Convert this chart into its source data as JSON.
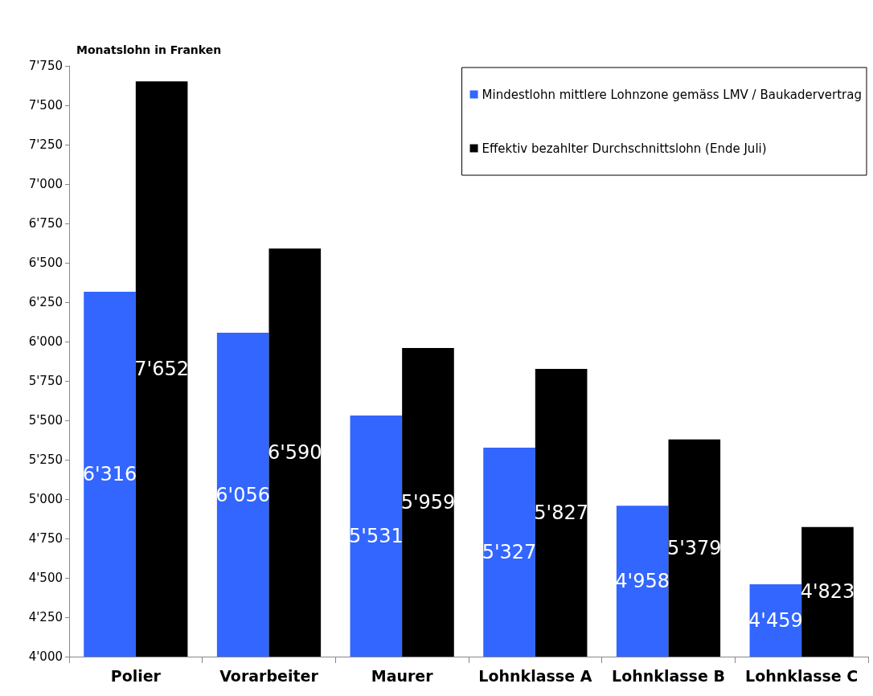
{
  "chart_data": {
    "type": "bar",
    "ylabel": "Monatslohn in Franken",
    "categories": [
      "Polier",
      "Vorarbeiter",
      "Maurer",
      "Lohnklasse A",
      "Lohnklasse B",
      "Lohnklasse C"
    ],
    "series": [
      {
        "name": "Mindestlohn mittlere Lohnzone gemäss LMV / Baukadervertrag",
        "color": "#3366ff",
        "values": [
          6316,
          6056,
          5531,
          5327,
          4958,
          4459
        ],
        "value_labels": [
          "6'316",
          "6'056",
          "5'531",
          "5'327",
          "4'958",
          "4'459"
        ]
      },
      {
        "name": "Effektiv bezahlter Durchschnittslohn (Ende Juli)",
        "color": "#000000",
        "values": [
          7652,
          6590,
          5959,
          5827,
          5379,
          4823
        ],
        "value_labels": [
          "7'652",
          "6'590",
          "5'959",
          "5'827",
          "5'379",
          "4'823"
        ]
      }
    ],
    "ylim": [
      4000,
      7750
    ],
    "yticks": [
      {
        "value": 4000,
        "label": "4'000"
      },
      {
        "value": 4250,
        "label": "4'250"
      },
      {
        "value": 4500,
        "label": "4'500"
      },
      {
        "value": 4750,
        "label": "4'750"
      },
      {
        "value": 5000,
        "label": "5'000"
      },
      {
        "value": 5250,
        "label": "5'250"
      },
      {
        "value": 5500,
        "label": "5'500"
      },
      {
        "value": 5750,
        "label": "5'750"
      },
      {
        "value": 6000,
        "label": "6'000"
      },
      {
        "value": 6250,
        "label": "6'250"
      },
      {
        "value": 6500,
        "label": "6'500"
      },
      {
        "value": 6750,
        "label": "6'750"
      },
      {
        "value": 7000,
        "label": "7'000"
      },
      {
        "value": 7250,
        "label": "7'250"
      },
      {
        "value": 7500,
        "label": "7'500"
      },
      {
        "value": 7750,
        "label": "7'750"
      }
    ],
    "grid": false,
    "legend": "top right"
  }
}
